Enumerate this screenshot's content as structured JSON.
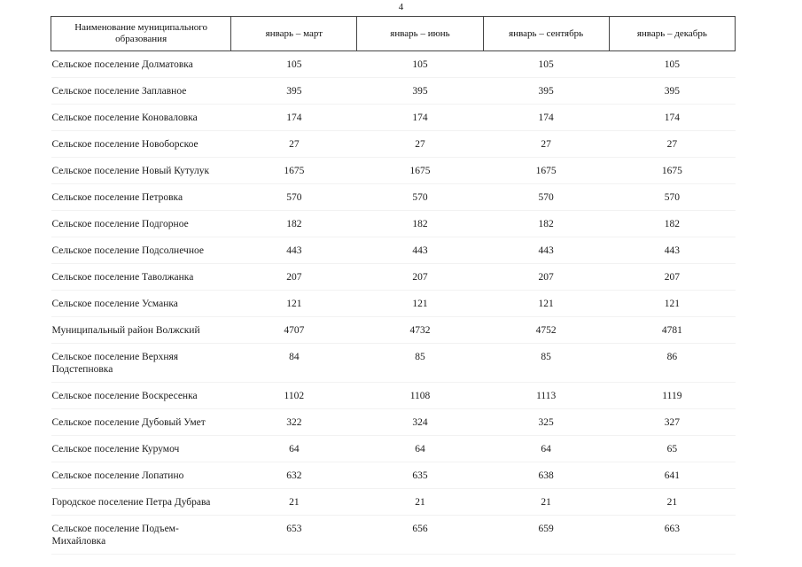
{
  "page": {
    "number": "4"
  },
  "table": {
    "headers": [
      "Наименование муниципального образования",
      "январь – март",
      "январь – июнь",
      "январь – сентябрь",
      "январь – декабрь"
    ],
    "rows": [
      {
        "name": "Сельское поселение Долматовка",
        "values": [
          "105",
          "105",
          "105",
          "105"
        ]
      },
      {
        "name": "Сельское поселение Заплавное",
        "values": [
          "395",
          "395",
          "395",
          "395"
        ]
      },
      {
        "name": "Сельское поселение Коноваловка",
        "values": [
          "174",
          "174",
          "174",
          "174"
        ]
      },
      {
        "name": "Сельское поселение Новоборское",
        "values": [
          "27",
          "27",
          "27",
          "27"
        ]
      },
      {
        "name": "Сельское поселение Новый Кутулук",
        "values": [
          "1675",
          "1675",
          "1675",
          "1675"
        ]
      },
      {
        "name": "Сельское поселение Петровка",
        "values": [
          "570",
          "570",
          "570",
          "570"
        ]
      },
      {
        "name": "Сельское поселение Подгорное",
        "values": [
          "182",
          "182",
          "182",
          "182"
        ]
      },
      {
        "name": "Сельское поселение Подсолнечное",
        "values": [
          "443",
          "443",
          "443",
          "443"
        ]
      },
      {
        "name": "Сельское поселение Таволжанка",
        "values": [
          "207",
          "207",
          "207",
          "207"
        ]
      },
      {
        "name": "Сельское поселение Усманка",
        "values": [
          "121",
          "121",
          "121",
          "121"
        ]
      },
      {
        "name": "Муниципальный район Волжский",
        "values": [
          "4707",
          "4732",
          "4752",
          "4781"
        ]
      },
      {
        "name": "Сельское поселение Верхняя Подстепновка",
        "values": [
          "84",
          "85",
          "85",
          "86"
        ]
      },
      {
        "name": "Сельское поселение Воскресенка",
        "values": [
          "1102",
          "1108",
          "1113",
          "1119"
        ]
      },
      {
        "name": "Сельское поселение Дубовый Умет",
        "values": [
          "322",
          "324",
          "325",
          "327"
        ]
      },
      {
        "name": "Сельское поселение Курумоч",
        "values": [
          "64",
          "64",
          "64",
          "65"
        ]
      },
      {
        "name": "Сельское поселение Лопатино",
        "values": [
          "632",
          "635",
          "638",
          "641"
        ]
      },
      {
        "name": "Городское поселение Петра Дубрава",
        "values": [
          "21",
          "21",
          "21",
          "21"
        ]
      },
      {
        "name": "Сельское поселение Подъем-Михайловка",
        "values": [
          "653",
          "656",
          "659",
          "663"
        ]
      }
    ]
  }
}
